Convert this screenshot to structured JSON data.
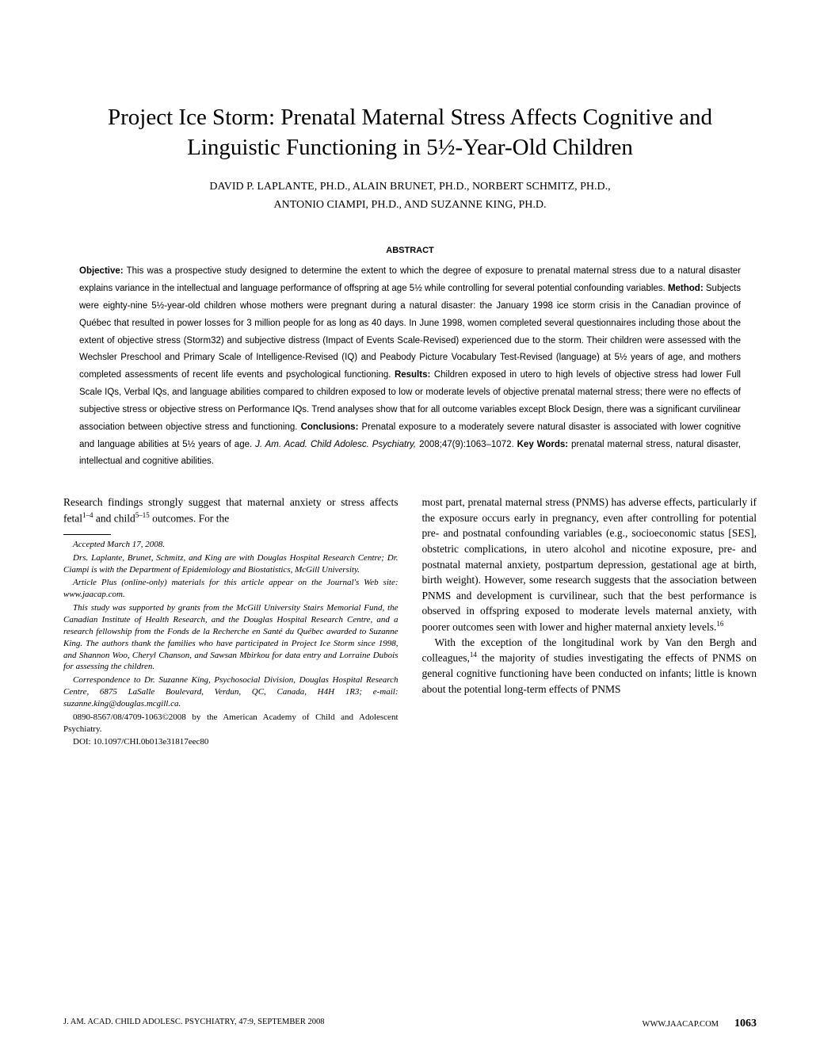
{
  "title": "Project Ice Storm: Prenatal Maternal Stress Affects Cognitive and Linguistic Functioning in 5½-Year-Old Children",
  "authors_line1": "DAVID P. LAPLANTE, PH.D., ALAIN BRUNET, PH.D., NORBERT SCHMITZ, PH.D.,",
  "authors_line2": "ANTONIO CIAMPI, PH.D., AND SUZANNE KING, PH.D.",
  "abstract_heading": "ABSTRACT",
  "abstract": {
    "objective_label": "Objective:",
    "objective": " This was a prospective study designed to determine the extent to which the degree of exposure to prenatal maternal stress due to a natural disaster explains variance in the intellectual and language performance of offspring at age 5½ while controlling for several potential confounding variables. ",
    "method_label": "Method:",
    "method": " Subjects were eighty-nine 5½-year-old children whose mothers were pregnant during a natural disaster: the January 1998 ice storm crisis in the Canadian province of Québec that resulted in power losses for 3 million people for as long as 40 days. In June 1998, women completed several questionnaires including those about the extent of objective stress (Storm32) and subjective distress (Impact of Events Scale-Revised) experienced due to the storm. Their children were assessed with the Wechsler Preschool and Primary Scale of Intelligence-Revised (IQ) and Peabody Picture Vocabulary Test-Revised (language) at 5½ years of age, and mothers completed assessments of recent life events and psychological functioning. ",
    "results_label": "Results:",
    "results": " Children exposed in utero to high levels of objective stress had lower Full Scale IQs, Verbal IQs, and language abilities compared to children exposed to low or moderate levels of objective prenatal maternal stress; there were no effects of subjective stress or objective stress on Performance IQs. Trend analyses show that for all outcome variables except Block Design, there was a significant curvilinear association between objective stress and functioning. ",
    "conclusions_label": "Conclusions:",
    "conclusions": " Prenatal exposure to a moderately severe natural disaster is associated with lower cognitive and language abilities at 5½ years of age. ",
    "citation": "J. Am. Acad. Child Adolesc. Psychiatry,",
    "citation_detail": " 2008;47(9):1063–1072. ",
    "keywords_label": "Key Words:",
    "keywords": " prenatal maternal stress, natural disaster, intellectual and cognitive abilities."
  },
  "body": {
    "left_intro": "Research findings strongly suggest that maternal anxiety or stress affects fetal",
    "left_sup1": "1–4",
    "left_intro2": " and child",
    "left_sup2": "5–15",
    "left_intro3": " outcomes. For the",
    "right_p1a": "most part, prenatal maternal stress (PNMS) has adverse effects, particularly if the exposure occurs early in pregnancy, even after controlling for potential pre- and postnatal confounding variables (e.g., socioeconomic status [SES], obstetric complications, in utero alcohol and nicotine exposure, pre- and postnatal maternal anxiety, postpartum depression, gestational age at birth, birth weight). However, some research suggests that the association between PNMS and development is curvi­linear, such that the best performance is observed in offspring exposed to moderate levels maternal anxiety, with poorer outcomes seen with lower and higher maternal anxiety levels.",
    "right_sup1": "16",
    "right_p2a": "With the exception of the longitudinal work by Van den Bergh and colleagues,",
    "right_sup2": "14",
    "right_p2b": " the majority of studies investigating the effects of PNMS on general cognitive functioning have been conducted on infants; little is known about the potential long-term effects of PNMS"
  },
  "footnotes": {
    "accepted": "Accepted March 17, 2008.",
    "affil": "Drs. Laplante, Brunet, Schmitz, and King are with Douglas Hospital Research Centre; Dr. Ciampi is with the Department of Epidemiology and Biostatistics, McGill University.",
    "articleplus": "Article Plus (online-only) materials for this article appear on the Journal's Web site: www.jaacap.com.",
    "funding": "This study was supported by grants from the McGill University Stairs Memorial Fund, the Canadian Institute of Health Research, and the Douglas Hospital Research Centre, and a research fellowship from the Fonds de la Recherche en Santé du Québec awarded to Suzanne King. The authors thank the families who have participated in Project Ice Storm since 1998, and Shannon Woo, Cheryl Chanson, and Sawsan Mbirkou for data entry and Lorraine Dubois for assessing the children.",
    "correspondence": "Correspondence to Dr. Suzanne King, Psychosocial Division, Douglas Hospital Research Centre, 6875 LaSalle Boulevard, Verdun, QC, Canada, H4H 1R3; e-mail: suzanne.king@douglas.mcgill.ca.",
    "copyright": "0890-8567/08/4709-1063©2008 by the American Academy of Child and Adolescent Psychiatry.",
    "doi": "DOI: 10.1097/CHI.0b013e31817eec80"
  },
  "footer": {
    "left": "J. AM. ACAD. CHILD ADOLESC. PSYCHIATRY, 47:9, SEPTEMBER 2008",
    "right_url": "WWW.JAACAP.COM",
    "page": "1063"
  },
  "colors": {
    "background": "#ffffff",
    "text": "#000000"
  },
  "typography": {
    "title_fontsize": 29,
    "author_fontsize": 14,
    "abstract_fontsize": 11.5,
    "body_fontsize": 13.5,
    "footnote_fontsize": 11,
    "footer_fontsize": 10.5,
    "title_font": "Garamond, serif",
    "abstract_font": "Arial, sans-serif"
  }
}
